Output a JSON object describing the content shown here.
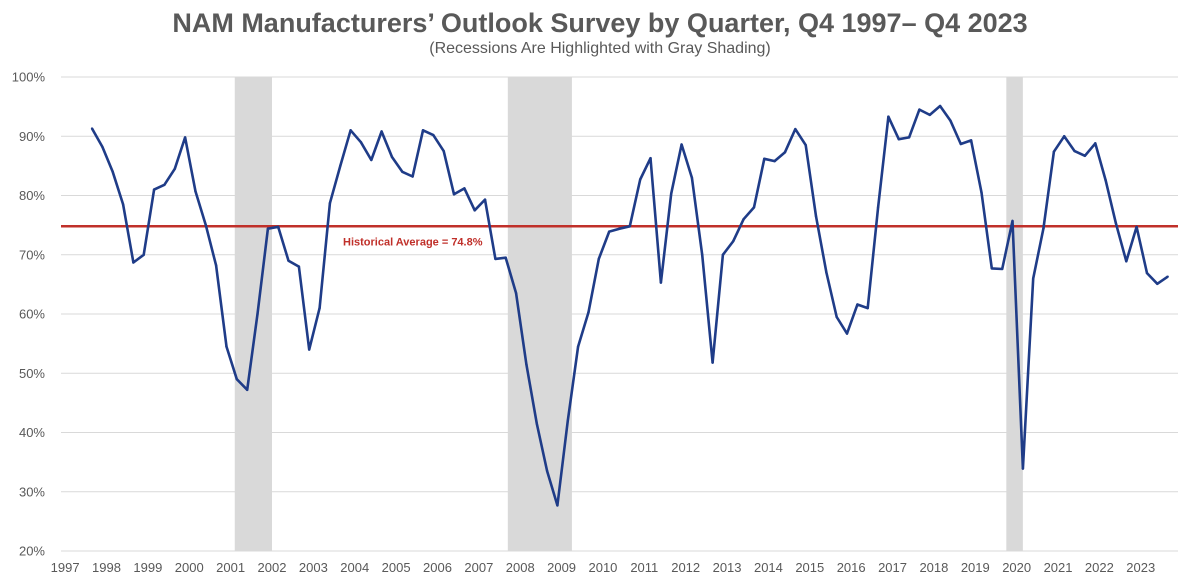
{
  "chart_data": {
    "type": "line",
    "title": "NAM Manufacturers’ Outlook Survey by Quarter, Q4 1997– Q4 2023",
    "subtitle": "(Recessions Are Highlighted with Gray Shading)",
    "xlabel": "",
    "ylabel": "",
    "ylim": [
      20,
      100
    ],
    "y_ticks": [
      20,
      30,
      40,
      50,
      60,
      70,
      80,
      90,
      100
    ],
    "y_tick_labels": [
      "20%",
      "30%",
      "40%",
      "50%",
      "60%",
      "70%",
      "80%",
      "90%",
      "100%"
    ],
    "x_range": [
      1997,
      2024
    ],
    "x_tick_labels": [
      "1997",
      "1998",
      "1999",
      "2000",
      "2001",
      "2002",
      "2003",
      "2004",
      "2005",
      "2006",
      "2007",
      "2008",
      "2009",
      "2010",
      "2011",
      "2012",
      "2013",
      "2014",
      "2015",
      "2016",
      "2017",
      "2018",
      "2019",
      "2020",
      "2021",
      "2022",
      "2023"
    ],
    "grid": true,
    "recessions": [
      {
        "start": 2001.2,
        "end": 2002.1
      },
      {
        "start": 2007.8,
        "end": 2009.35
      },
      {
        "start": 2019.85,
        "end": 2020.25
      }
    ],
    "reference_line": {
      "value": 74.8,
      "label": "Historical Average = 74.8%"
    },
    "colors": {
      "series": "#1f3c88",
      "average": "#c0302a",
      "recession": "#d9d9d9",
      "grid": "#d9d9d9",
      "text": "#595959"
    },
    "series": [
      {
        "name": "Manufacturers' Outlook",
        "points": [
          [
            1997.75,
            91.3
          ],
          [
            1998.0,
            88.2
          ],
          [
            1998.25,
            84.0
          ],
          [
            1998.5,
            78.5
          ],
          [
            1998.75,
            68.7
          ],
          [
            1999.0,
            70.0
          ],
          [
            1999.25,
            81.0
          ],
          [
            1999.5,
            81.8
          ],
          [
            1999.75,
            84.5
          ],
          [
            2000.0,
            89.8
          ],
          [
            2000.25,
            80.7
          ],
          [
            2000.5,
            75.0
          ],
          [
            2000.75,
            68.2
          ],
          [
            2001.0,
            54.5
          ],
          [
            2001.25,
            49.0
          ],
          [
            2001.5,
            47.2
          ],
          [
            2001.75,
            60.0
          ],
          [
            2002.0,
            74.4
          ],
          [
            2002.25,
            74.7
          ],
          [
            2002.5,
            69.0
          ],
          [
            2002.75,
            68.0
          ],
          [
            2003.0,
            54.0
          ],
          [
            2003.25,
            61.0
          ],
          [
            2003.5,
            78.7
          ],
          [
            2003.75,
            85.0
          ],
          [
            2004.0,
            91.0
          ],
          [
            2004.25,
            89.0
          ],
          [
            2004.5,
            86.0
          ],
          [
            2004.75,
            90.8
          ],
          [
            2005.0,
            86.5
          ],
          [
            2005.25,
            84.0
          ],
          [
            2005.5,
            83.2
          ],
          [
            2005.75,
            91.0
          ],
          [
            2006.0,
            90.2
          ],
          [
            2006.25,
            87.5
          ],
          [
            2006.5,
            80.2
          ],
          [
            2006.75,
            81.2
          ],
          [
            2007.0,
            77.5
          ],
          [
            2007.25,
            79.3
          ],
          [
            2007.5,
            69.3
          ],
          [
            2007.75,
            69.5
          ],
          [
            2008.0,
            63.5
          ],
          [
            2008.25,
            51.5
          ],
          [
            2008.5,
            41.5
          ],
          [
            2008.75,
            33.5
          ],
          [
            2009.0,
            27.7
          ],
          [
            2009.25,
            42.0
          ],
          [
            2009.5,
            54.5
          ],
          [
            2009.75,
            60.3
          ],
          [
            2010.0,
            69.3
          ],
          [
            2010.25,
            73.9
          ],
          [
            2010.5,
            74.4
          ],
          [
            2010.75,
            74.8
          ],
          [
            2011.0,
            82.7
          ],
          [
            2011.25,
            86.3
          ],
          [
            2011.5,
            65.3
          ],
          [
            2011.75,
            80.3
          ],
          [
            2012.0,
            88.6
          ],
          [
            2012.25,
            83.0
          ],
          [
            2012.5,
            70.0
          ],
          [
            2012.75,
            51.8
          ],
          [
            2013.0,
            70.0
          ],
          [
            2013.25,
            72.3
          ],
          [
            2013.5,
            76.0
          ],
          [
            2013.75,
            78.0
          ],
          [
            2014.0,
            86.2
          ],
          [
            2014.25,
            85.8
          ],
          [
            2014.5,
            87.3
          ],
          [
            2014.75,
            91.2
          ],
          [
            2015.0,
            88.5
          ],
          [
            2015.25,
            76.5
          ],
          [
            2015.5,
            67.0
          ],
          [
            2015.75,
            59.5
          ],
          [
            2016.0,
            56.7
          ],
          [
            2016.25,
            61.6
          ],
          [
            2016.5,
            61.0
          ],
          [
            2016.75,
            78.0
          ],
          [
            2017.0,
            93.3
          ],
          [
            2017.25,
            89.5
          ],
          [
            2017.5,
            89.8
          ],
          [
            2017.75,
            94.5
          ],
          [
            2018.0,
            93.6
          ],
          [
            2018.25,
            95.1
          ],
          [
            2018.5,
            92.6
          ],
          [
            2018.75,
            88.7
          ],
          [
            2019.0,
            89.3
          ],
          [
            2019.25,
            80.5
          ],
          [
            2019.5,
            67.7
          ],
          [
            2019.75,
            67.6
          ],
          [
            2020.0,
            75.7
          ],
          [
            2020.25,
            33.9
          ],
          [
            2020.5,
            66.0
          ],
          [
            2020.75,
            74.5
          ],
          [
            2021.0,
            87.4
          ],
          [
            2021.25,
            90.0
          ],
          [
            2021.5,
            87.5
          ],
          [
            2021.75,
            86.7
          ],
          [
            2022.0,
            88.8
          ],
          [
            2022.25,
            82.6
          ],
          [
            2022.5,
            75.3
          ],
          [
            2022.75,
            68.9
          ],
          [
            2023.0,
            74.7
          ],
          [
            2023.25,
            66.9
          ],
          [
            2023.5,
            65.1
          ],
          [
            2023.75,
            66.3
          ]
        ]
      }
    ]
  }
}
